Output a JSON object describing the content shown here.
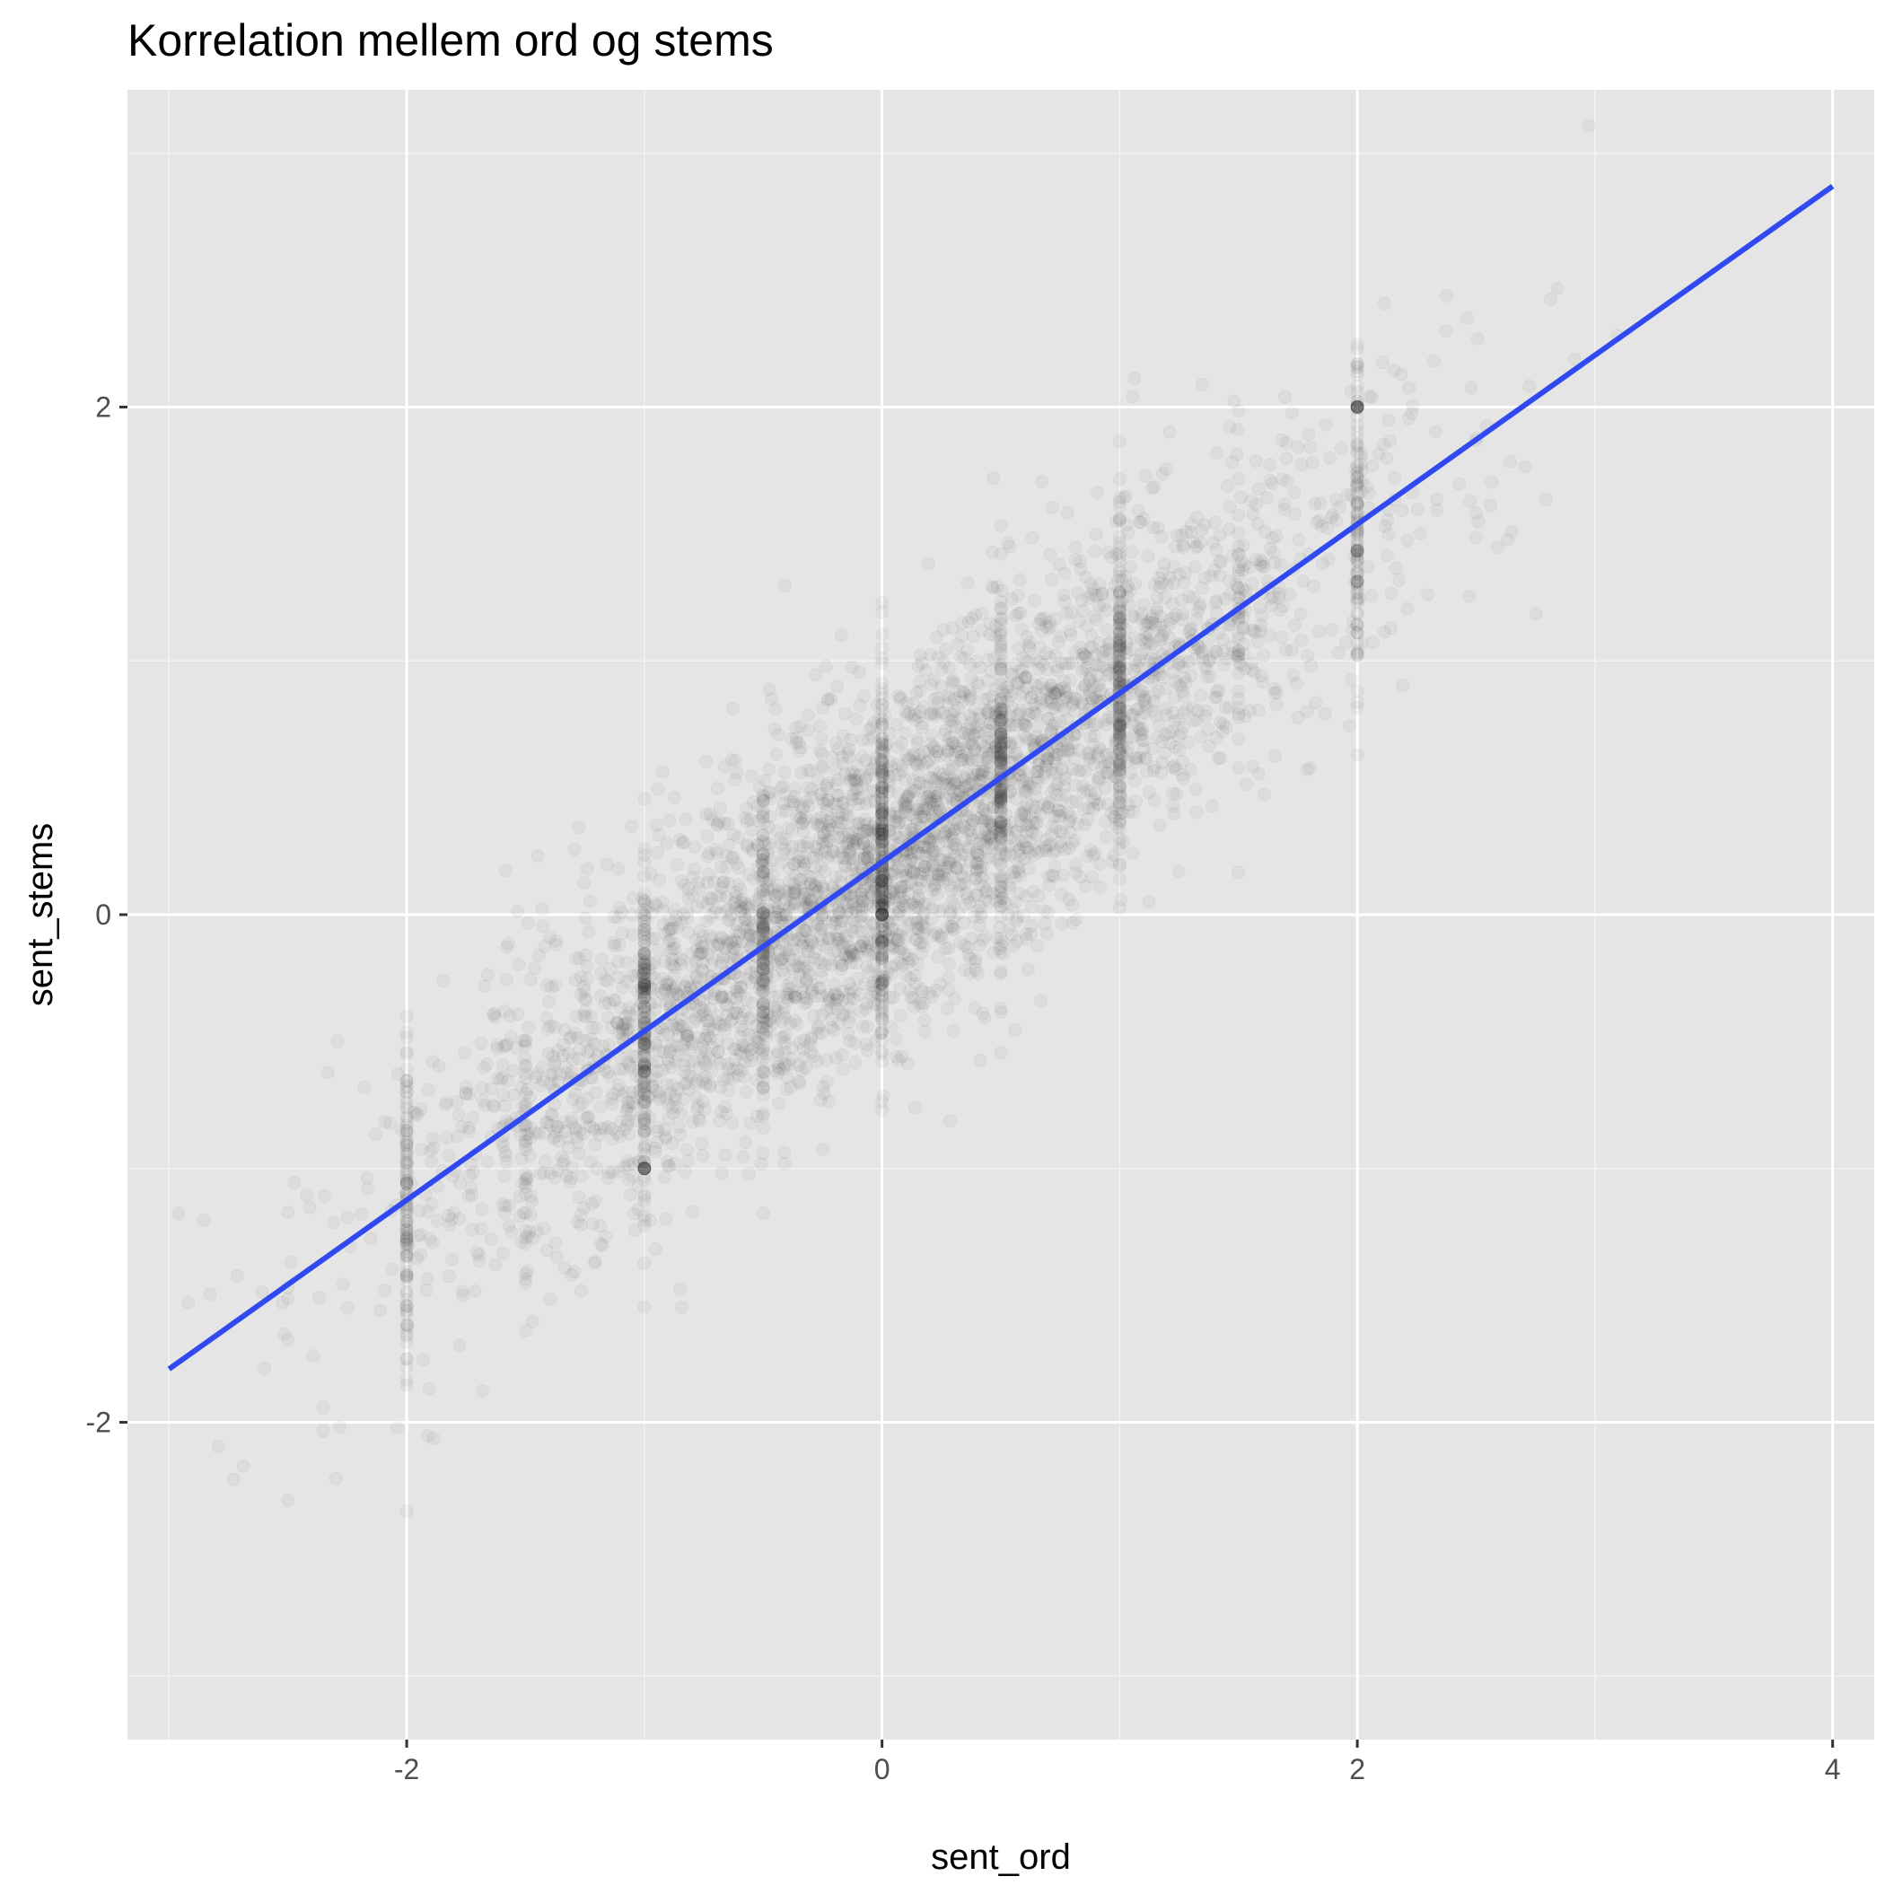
{
  "chart_data": {
    "type": "scatter",
    "title": "Korrelation mellem ord og stems",
    "xlabel": "sent_ord",
    "ylabel": "sent_stems",
    "xlim": [
      -3.175,
      4.175
    ],
    "ylim": [
      -3.25,
      3.25
    ],
    "x_ticks": [
      -2,
      0,
      2,
      4
    ],
    "x_tick_labels": [
      "-2",
      "0",
      "2",
      "4"
    ],
    "y_ticks": [
      -2,
      0,
      2
    ],
    "y_tick_labels": [
      "-2",
      "0",
      "2"
    ],
    "x_minor_breaks": [
      -3,
      -1,
      1,
      3
    ],
    "y_minor_breaks": [
      -3,
      -1,
      1,
      3
    ],
    "grid": true,
    "fit_line": {
      "x": [
        -3,
        4
      ],
      "y": [
        -1.79,
        2.87
      ],
      "color": "#3049f0"
    },
    "scatter": {
      "n_points": 5200,
      "point_color": "#000000",
      "point_alpha": 0.04,
      "x_range": [
        -3,
        4
      ],
      "discrete_x_values": [
        -3,
        -2,
        -1,
        0,
        1,
        2,
        3
      ],
      "slope": 0.665,
      "intercept": 0.205,
      "residual_sd": 0.35,
      "highlight_points": [
        [
          2,
          2
        ],
        [
          -1,
          -1
        ],
        [
          0,
          0
        ]
      ]
    },
    "colors": {
      "panel_background": "#e5e5e5",
      "grid_major": "#ffffff",
      "grid_minor": "#f2f2f2",
      "page_background": "#ffffff"
    }
  }
}
